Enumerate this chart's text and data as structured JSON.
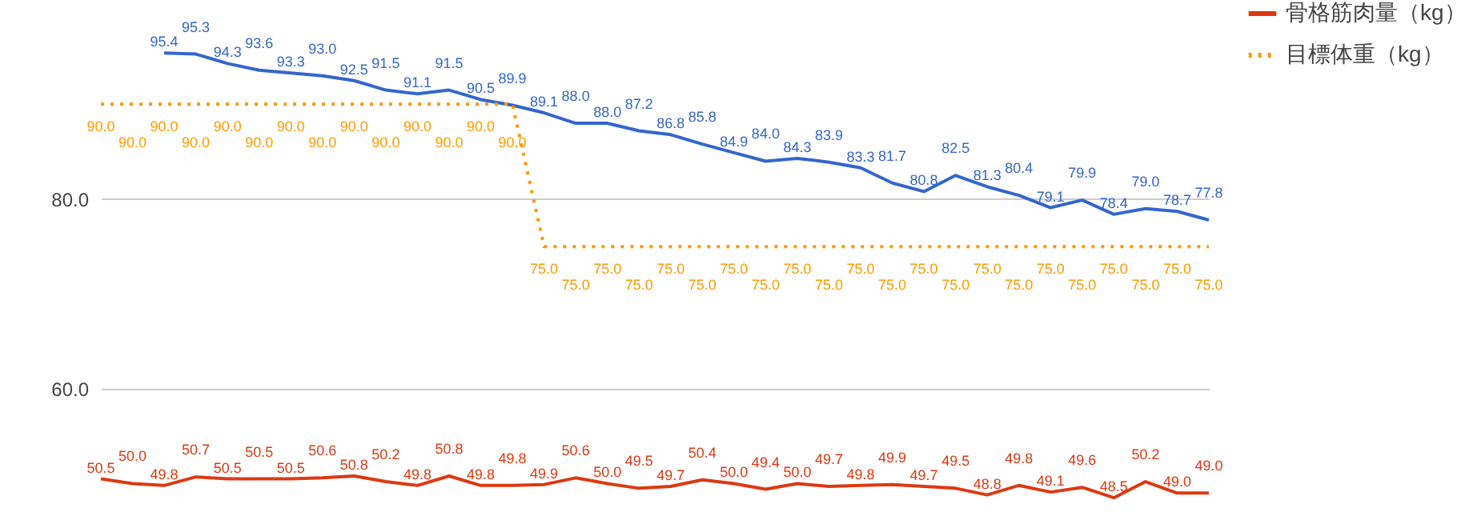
{
  "chart_data": {
    "type": "line",
    "categories": [
      null,
      null,
      null,
      null,
      null,
      null,
      null,
      null,
      null,
      null,
      null,
      null,
      null,
      null,
      null,
      null,
      null,
      null,
      null,
      null,
      null,
      null,
      null,
      null,
      null,
      null,
      null,
      null,
      null,
      null,
      null,
      null,
      null,
      null,
      null,
      null
    ],
    "ylim": [
      47,
      101
    ],
    "yticks": [
      {
        "value": 60,
        "label": "60.0"
      },
      {
        "value": 80,
        "label": "80.0"
      }
    ],
    "grid": "y",
    "legend": "top right",
    "tick_labels": "y",
    "series": [
      {
        "color": "#3366cc",
        "values": [
          null,
          null,
          95.4,
          95.3,
          94.3,
          93.6,
          93.3,
          93.0,
          92.5,
          91.5,
          91.1,
          91.5,
          90.5,
          89.9,
          89.1,
          88.0,
          88.0,
          87.2,
          86.8,
          85.8,
          84.9,
          84.0,
          84.3,
          83.9,
          83.3,
          81.7,
          80.8,
          82.5,
          81.3,
          80.4,
          79.1,
          79.9,
          78.4,
          79.0,
          78.7,
          77.8
        ],
        "value_labels": [
          null,
          null,
          "95.4",
          "95.3",
          "94.3",
          "93.6",
          "93.3",
          "93.0",
          "92.5",
          "91.5",
          "91.1",
          "91.5",
          "90.5",
          "89.9",
          "89.1",
          "88.0",
          "88.0",
          "87.2",
          "86.8",
          "85.8",
          "84.9",
          "84.0",
          "84.3",
          "83.9",
          "83.3",
          "81.7",
          "80.8",
          "82.5",
          "81.3",
          "80.4",
          "79.1",
          "79.9",
          "78.4",
          "79.0",
          "78.7",
          "77.8"
        ]
      },
      {
        "name": "骨格筋肉量（kg）",
        "color": "#dc3912",
        "values": [
          50.5,
          50.0,
          49.8,
          50.7,
          50.5,
          50.5,
          50.5,
          50.6,
          50.8,
          50.2,
          49.8,
          50.8,
          49.8,
          49.8,
          49.9,
          50.6,
          50.0,
          49.5,
          49.7,
          50.4,
          50.0,
          49.4,
          50.0,
          49.7,
          49.8,
          49.9,
          49.7,
          49.5,
          48.8,
          49.8,
          49.1,
          49.6,
          48.5,
          50.2,
          49.0,
          49.0
        ],
        "value_labels": [
          "50.5",
          "50.0",
          "49.8",
          "50.7",
          "50.5",
          "50.5",
          "50.5",
          "50.6",
          "50.8",
          "50.2",
          "49.8",
          "50.8",
          "49.8",
          "49.8",
          "49.9",
          "50.6",
          "50.0",
          "49.5",
          "49.7",
          "50.4",
          "50.0",
          "49.4",
          "50.0",
          "49.7",
          "49.8",
          "49.9",
          "49.7",
          "49.5",
          "48.8",
          "49.8",
          "49.1",
          "49.6",
          "48.5",
          "50.2",
          "49.0",
          "49.0"
        ]
      },
      {
        "name": "目標体重（kg）",
        "color": "#ff9900",
        "line_style": "dotted",
        "values": [
          90.0,
          90.0,
          90.0,
          90.0,
          90.0,
          90.0,
          90.0,
          90.0,
          90.0,
          90.0,
          90.0,
          90.0,
          90.0,
          90.0,
          75.0,
          75.0,
          75.0,
          75.0,
          75.0,
          75.0,
          75.0,
          75.0,
          75.0,
          75.0,
          75.0,
          75.0,
          75.0,
          75.0,
          75.0,
          75.0,
          75.0,
          75.0,
          75.0,
          75.0,
          75.0,
          75.0
        ],
        "value_labels": [
          "90.0",
          "90.0",
          "90.0",
          "90.0",
          "90.0",
          "90.0",
          "90.0",
          "90.0",
          "90.0",
          "90.0",
          "90.0",
          "90.0",
          "90.0",
          "90.0",
          "75.0",
          "75.0",
          "75.0",
          "75.0",
          "75.0",
          "75.0",
          "75.0",
          "75.0",
          "75.0",
          "75.0",
          "75.0",
          "75.0",
          "75.0",
          "75.0",
          "75.0",
          "75.0",
          "75.0",
          "75.0",
          "75.0",
          "75.0",
          "75.0",
          "75.0"
        ]
      }
    ]
  }
}
